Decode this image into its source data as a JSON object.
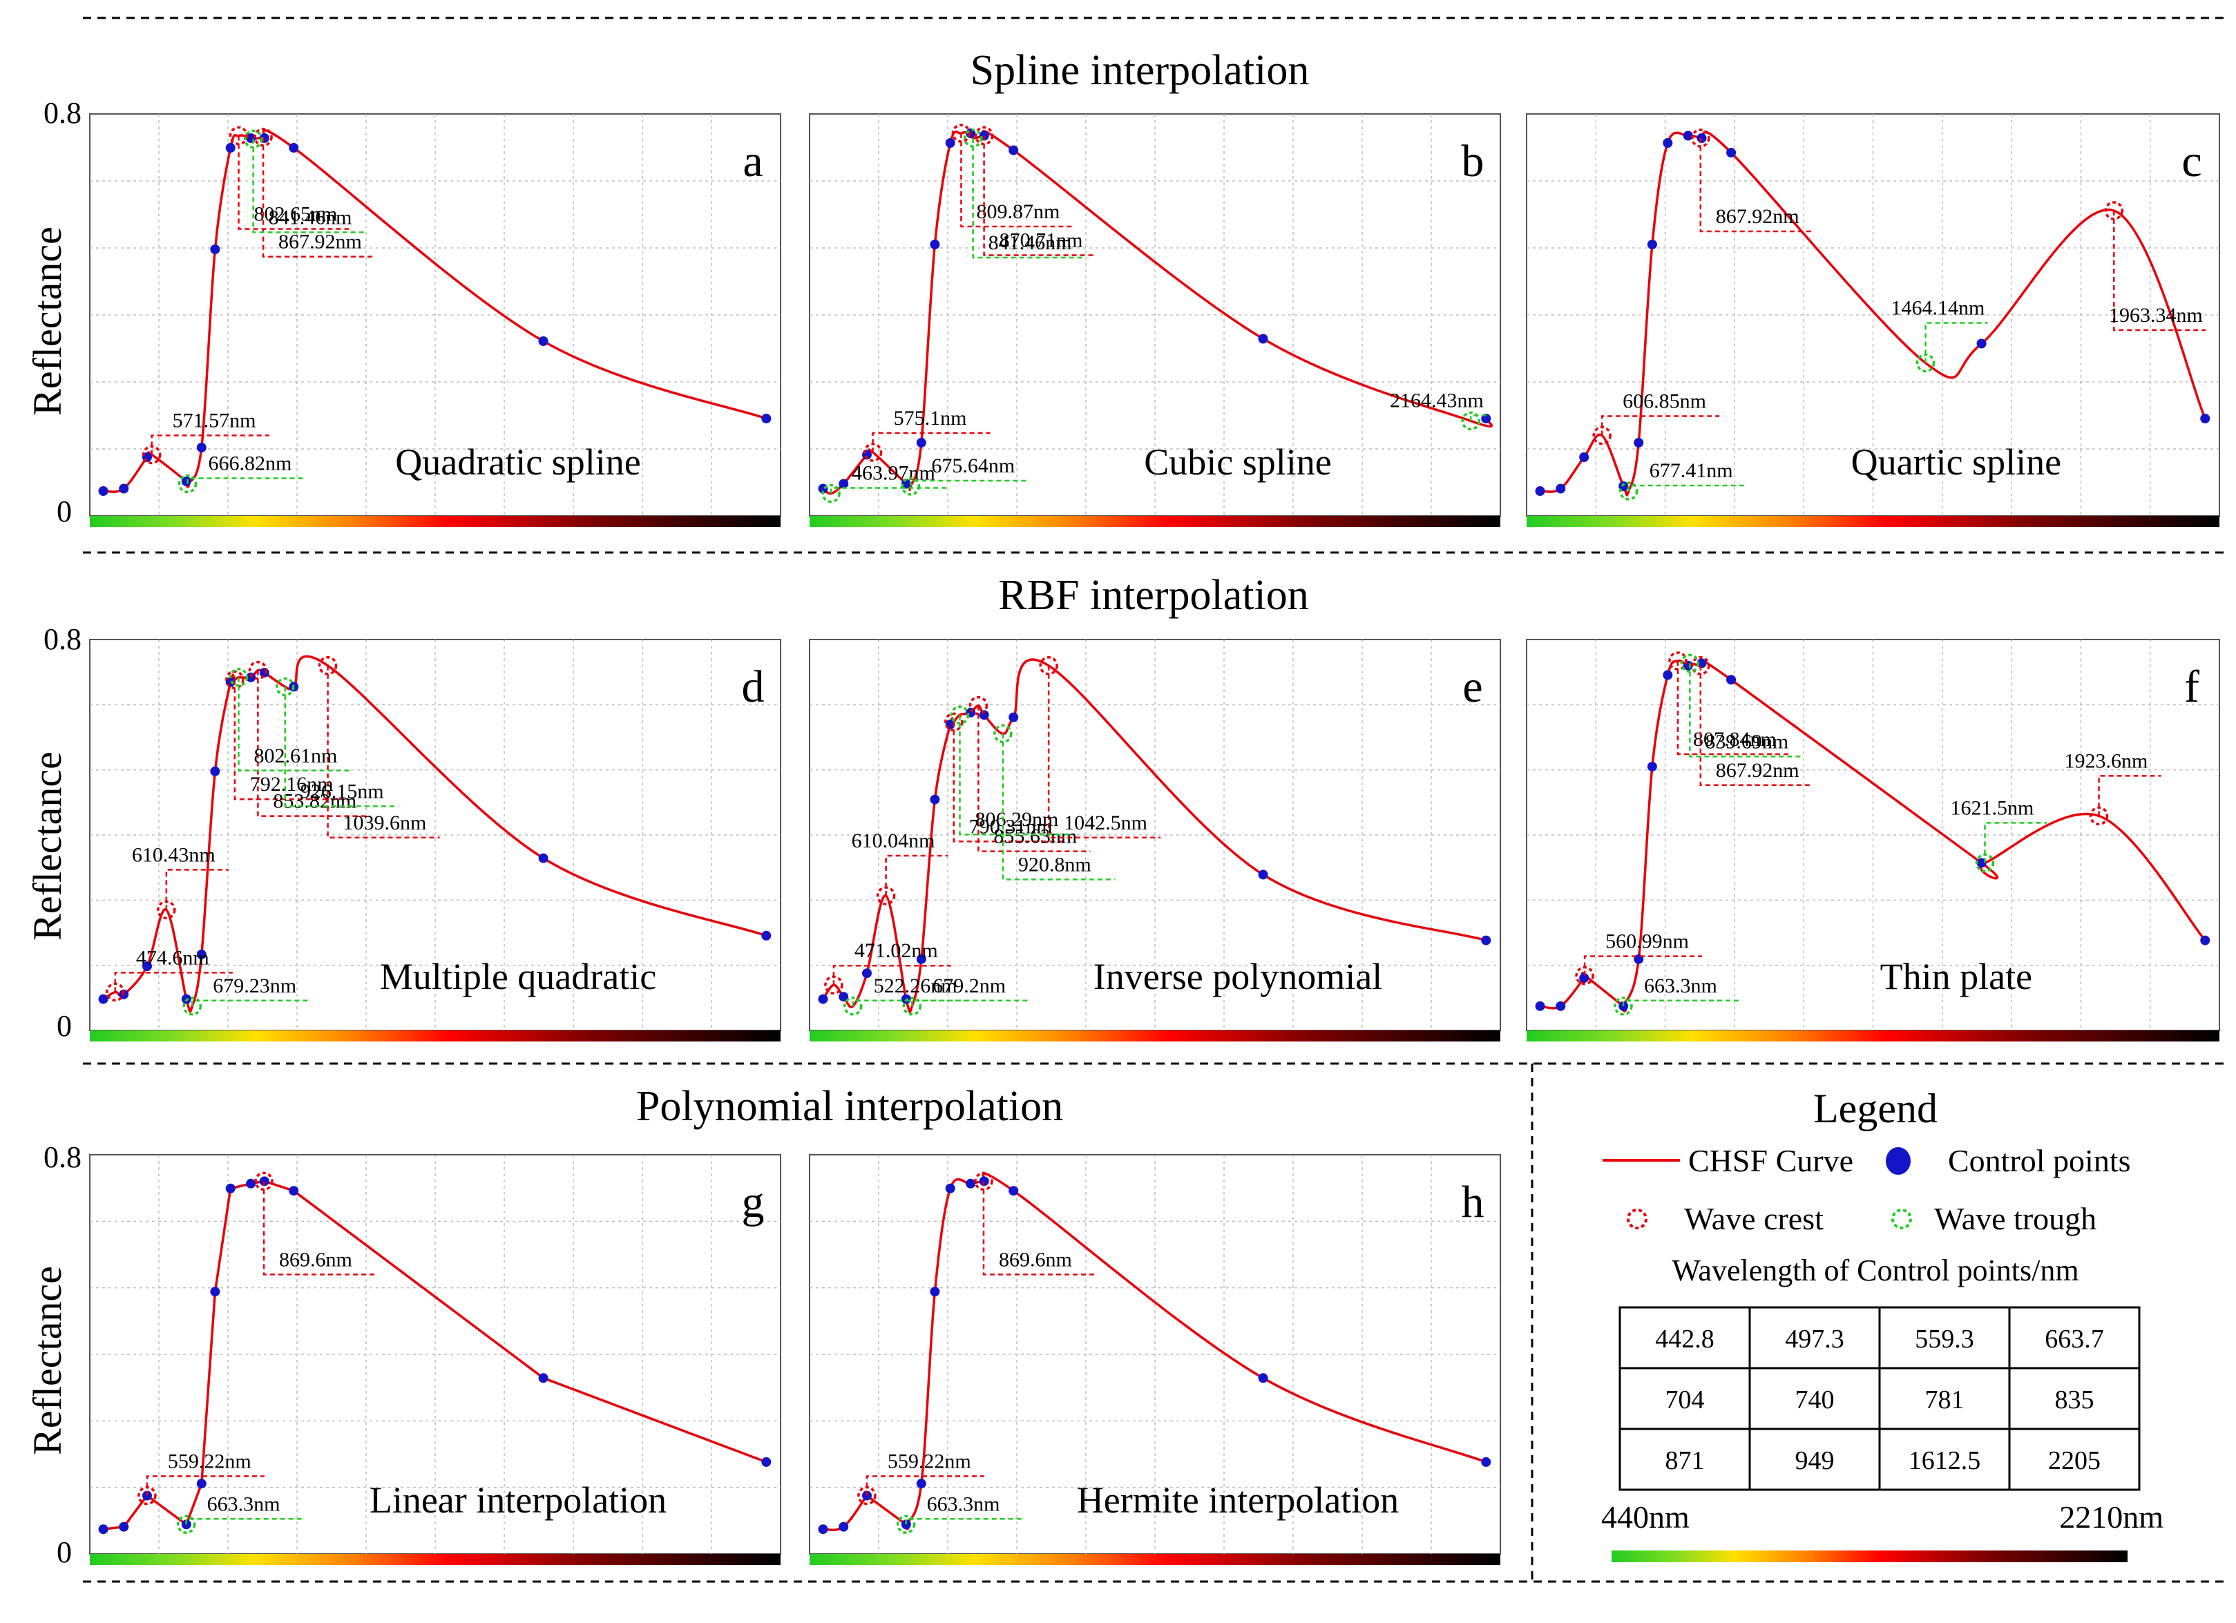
{
  "figure": {
    "sections": [
      "Spline interpolation",
      "RBF interpolation",
      "Polynomial interpolation"
    ],
    "ylabel": "Reflectance",
    "ytick_top": "0.8",
    "ytick_bottom": "0"
  },
  "legend": {
    "title": "Legend",
    "curve_label": "CHSF Curve",
    "control_label": "Control points",
    "crest_label": "Wave crest",
    "trough_label": "Wave trough",
    "table_title": "Wavelength of Control points/nm",
    "table": [
      [
        "442.8",
        "497.3",
        "559.3",
        "663.7"
      ],
      [
        "704",
        "740",
        "781",
        "835"
      ],
      [
        "871",
        "949",
        "1612.5",
        "2205"
      ]
    ],
    "range_start": "440nm",
    "range_end": "2210nm"
  },
  "colors": {
    "curve": "#e8000b",
    "control": "#1414c8",
    "crest": "#e8000b",
    "trough": "#22cc22"
  },
  "chart_data": [
    {
      "type": "line",
      "letter": "a",
      "method": "Quadratic spline",
      "xlim": [
        440,
        2210
      ],
      "ylim": [
        0,
        0.8
      ],
      "control_points": {
        "x": [
          442.8,
          497.3,
          559.3,
          663.7,
          704,
          740,
          781,
          835,
          871,
          949,
          1612.5,
          2205
        ],
        "y": [
          0.04,
          0.045,
          0.11,
          0.06,
          0.13,
          0.54,
          0.75,
          0.77,
          0.77,
          0.75,
          0.35,
          0.19
        ]
      },
      "extra_points": [
        [
          571.57,
          0.115
        ],
        [
          666.82,
          0.055
        ],
        [
          802.65,
          0.775
        ],
        [
          841.46,
          0.768
        ],
        [
          867.92,
          0.772
        ]
      ],
      "crests": [
        {
          "x": 571.57,
          "y": 0.115,
          "label": "571.57nm"
        },
        {
          "x": 802.65,
          "y": 0.775,
          "label": "802.65nm"
        },
        {
          "x": 867.92,
          "y": 0.772,
          "label": "867.92nm"
        }
      ],
      "troughs": [
        {
          "x": 666.82,
          "y": 0.055,
          "label": "666.82nm"
        },
        {
          "x": 841.46,
          "y": 0.768,
          "label": "841.46nm"
        }
      ]
    },
    {
      "type": "line",
      "letter": "b",
      "method": "Cubic spline",
      "xlim": [
        440,
        2210
      ],
      "ylim": [
        0,
        0.8
      ],
      "control_points": {
        "x": [
          442.8,
          497.3,
          559.3,
          663.7,
          704,
          740,
          781,
          835,
          871,
          949,
          1612.5,
          2205
        ],
        "y": [
          0.045,
          0.055,
          0.115,
          0.055,
          0.14,
          0.55,
          0.76,
          0.78,
          0.775,
          0.745,
          0.355,
          0.19
        ]
      },
      "extra_points": [
        [
          463.97,
          0.035
        ],
        [
          575.1,
          0.12
        ],
        [
          675.64,
          0.05
        ],
        [
          809.87,
          0.78
        ],
        [
          841.46,
          0.77
        ],
        [
          870.71,
          0.775
        ],
        [
          2164.43,
          0.185
        ]
      ],
      "crests": [
        {
          "x": 575.1,
          "y": 0.12,
          "label": "575.1nm"
        },
        {
          "x": 809.87,
          "y": 0.78,
          "label": "809.87nm"
        },
        {
          "x": 870.71,
          "y": 0.775,
          "label": "870.71nm"
        }
      ],
      "troughs": [
        {
          "x": 463.97,
          "y": 0.035,
          "label": "463.97nm"
        },
        {
          "x": 675.64,
          "y": 0.05,
          "label": "675.64nm"
        },
        {
          "x": 841.46,
          "y": 0.77,
          "label": "841.46nm"
        },
        {
          "x": 2164.43,
          "y": 0.185,
          "label": "2164.43nm"
        }
      ]
    },
    {
      "type": "line",
      "letter": "c",
      "method": "Quartic spline",
      "xlim": [
        440,
        2210
      ],
      "ylim": [
        0,
        0.8
      ],
      "control_points": {
        "x": [
          442.8,
          497.3,
          559.3,
          663.7,
          704,
          740,
          781,
          835,
          871,
          949,
          1612.5,
          2205
        ],
        "y": [
          0.04,
          0.045,
          0.11,
          0.05,
          0.14,
          0.55,
          0.76,
          0.775,
          0.77,
          0.74,
          0.345,
          0.19
        ]
      },
      "extra_points": [
        [
          606.85,
          0.155
        ],
        [
          677.41,
          0.04
        ],
        [
          867.92,
          0.77
        ],
        [
          1464.14,
          0.305
        ],
        [
          1963.34,
          0.62
        ]
      ],
      "crests": [
        {
          "x": 606.85,
          "y": 0.155,
          "label": "606.85nm"
        },
        {
          "x": 867.92,
          "y": 0.77,
          "label": "867.92nm"
        },
        {
          "x": 1963.34,
          "y": 0.62,
          "label": "1963.34nm"
        }
      ],
      "troughs": [
        {
          "x": 677.41,
          "y": 0.04,
          "label": "677.41nm"
        },
        {
          "x": 1464.14,
          "y": 0.305,
          "label": "1464.14nm"
        }
      ]
    },
    {
      "type": "line",
      "letter": "d",
      "method": "Multiple quadratic",
      "xlim": [
        440,
        2210
      ],
      "ylim": [
        0,
        0.8
      ],
      "control_points": {
        "x": [
          442.8,
          497.3,
          559.3,
          663.7,
          704,
          740,
          781,
          835,
          871,
          949,
          1612.5,
          2205
        ],
        "y": [
          0.055,
          0.065,
          0.125,
          0.055,
          0.15,
          0.54,
          0.73,
          0.74,
          0.75,
          0.72,
          0.355,
          0.19
        ]
      },
      "extra_points": [
        [
          474.6,
          0.07
        ],
        [
          610.43,
          0.245
        ],
        [
          679.23,
          0.04
        ],
        [
          792.16,
          0.735
        ],
        [
          802.61,
          0.74
        ],
        [
          853.82,
          0.755
        ],
        [
          926.15,
          0.72
        ],
        [
          1039.6,
          0.765
        ]
      ],
      "crests": [
        {
          "x": 474.6,
          "y": 0.07,
          "label": "474.6nm"
        },
        {
          "x": 610.43,
          "y": 0.245,
          "label": "610.43nm"
        },
        {
          "x": 792.16,
          "y": 0.735,
          "label": "792.16nm"
        },
        {
          "x": 853.82,
          "y": 0.755,
          "label": "853.82nm"
        },
        {
          "x": 1039.6,
          "y": 0.765,
          "label": "1039.6nm"
        }
      ],
      "troughs": [
        {
          "x": 679.23,
          "y": 0.04,
          "label": "679.23nm"
        },
        {
          "x": 802.61,
          "y": 0.74,
          "label": "802.61nm"
        },
        {
          "x": 926.15,
          "y": 0.72,
          "label": "926.15nm"
        }
      ]
    },
    {
      "type": "line",
      "letter": "e",
      "method": "Inverse polynomial",
      "xlim": [
        440,
        2210
      ],
      "ylim": [
        0,
        0.8
      ],
      "control_points": {
        "x": [
          442.8,
          497.3,
          559.3,
          663.7,
          704,
          740,
          781,
          835,
          871,
          949,
          1612.5,
          2205
        ],
        "y": [
          0.055,
          0.06,
          0.11,
          0.055,
          0.14,
          0.48,
          0.64,
          0.665,
          0.66,
          0.655,
          0.32,
          0.18
        ]
      },
      "extra_points": [
        [
          471.02,
          0.085
        ],
        [
          522.26,
          0.04
        ],
        [
          610.04,
          0.275
        ],
        [
          679.2,
          0.04
        ],
        [
          790.31,
          0.645
        ],
        [
          806.29,
          0.66
        ],
        [
          855.63,
          0.68
        ],
        [
          920.8,
          0.62
        ],
        [
          1042.5,
          0.765
        ]
      ],
      "crests": [
        {
          "x": 471.02,
          "y": 0.085,
          "label": "471.02nm"
        },
        {
          "x": 610.04,
          "y": 0.275,
          "label": "610.04nm"
        },
        {
          "x": 790.31,
          "y": 0.645,
          "label": "790.31nm"
        },
        {
          "x": 855.63,
          "y": 0.68,
          "label": "855.63nm"
        },
        {
          "x": 1042.5,
          "y": 0.765,
          "label": "1042.5nm"
        }
      ],
      "troughs": [
        {
          "x": 522.26,
          "y": 0.04,
          "label": "522.26nm"
        },
        {
          "x": 679.2,
          "y": 0.04,
          "label": "679.2nm"
        },
        {
          "x": 806.29,
          "y": 0.66,
          "label": "806.29nm"
        },
        {
          "x": 920.8,
          "y": 0.62,
          "label": "920.8nm"
        }
      ]
    },
    {
      "type": "line",
      "letter": "f",
      "method": "Thin plate",
      "xlim": [
        440,
        2210
      ],
      "ylim": [
        0,
        0.8
      ],
      "control_points": {
        "x": [
          442.8,
          497.3,
          559.3,
          663.7,
          704,
          740,
          781,
          835,
          871,
          949,
          1612.5,
          2205
        ],
        "y": [
          0.04,
          0.04,
          0.1,
          0.04,
          0.14,
          0.55,
          0.745,
          0.765,
          0.77,
          0.735,
          0.345,
          0.18
        ]
      },
      "extra_points": [
        [
          560.99,
          0.105
        ],
        [
          663.3,
          0.04
        ],
        [
          807.84,
          0.775
        ],
        [
          839.69,
          0.77
        ],
        [
          867.92,
          0.765
        ],
        [
          1621.5,
          0.345
        ],
        [
          1923.6,
          0.445
        ]
      ],
      "crests": [
        {
          "x": 560.99,
          "y": 0.105,
          "label": "560.99nm"
        },
        {
          "x": 807.84,
          "y": 0.775,
          "label": "807.84nm"
        },
        {
          "x": 867.92,
          "y": 0.765,
          "label": "867.92nm"
        },
        {
          "x": 1923.6,
          "y": 0.445,
          "label": "1923.6nm"
        }
      ],
      "troughs": [
        {
          "x": 663.3,
          "y": 0.04,
          "label": "663.3nm"
        },
        {
          "x": 839.69,
          "y": 0.77,
          "label": "839.69nm"
        },
        {
          "x": 1621.5,
          "y": 0.345,
          "label": "1621.5nm"
        }
      ]
    },
    {
      "type": "line",
      "letter": "g",
      "method": "Linear interpolation",
      "xlim": [
        440,
        2210
      ],
      "ylim": [
        0,
        0.8
      ],
      "control_points": {
        "x": [
          442.8,
          497.3,
          559.3,
          663.7,
          704,
          740,
          781,
          835,
          871,
          949,
          1612.5,
          2205
        ],
        "y": [
          0.04,
          0.045,
          0.11,
          0.05,
          0.135,
          0.535,
          0.75,
          0.76,
          0.765,
          0.745,
          0.355,
          0.18
        ]
      },
      "extra_points": [
        [
          559.22,
          0.11
        ],
        [
          663.3,
          0.05
        ],
        [
          869.6,
          0.765
        ]
      ],
      "crests": [
        {
          "x": 559.22,
          "y": 0.11,
          "label": "559.22nm"
        },
        {
          "x": 869.6,
          "y": 0.765,
          "label": "869.6nm"
        }
      ],
      "troughs": [
        {
          "x": 663.3,
          "y": 0.05,
          "label": "663.3nm"
        }
      ]
    },
    {
      "type": "line",
      "letter": "h",
      "method": "Hermite interpolation",
      "xlim": [
        440,
        2210
      ],
      "ylim": [
        0,
        0.8
      ],
      "control_points": {
        "x": [
          442.8,
          497.3,
          559.3,
          663.7,
          704,
          740,
          781,
          835,
          871,
          949,
          1612.5,
          2205
        ],
        "y": [
          0.04,
          0.045,
          0.11,
          0.05,
          0.135,
          0.535,
          0.75,
          0.76,
          0.765,
          0.745,
          0.355,
          0.18
        ]
      },
      "extra_points": [
        [
          559.22,
          0.11
        ],
        [
          663.3,
          0.05
        ],
        [
          869.6,
          0.765
        ]
      ],
      "crests": [
        {
          "x": 559.22,
          "y": 0.11,
          "label": "559.22nm"
        },
        {
          "x": 869.6,
          "y": 0.765,
          "label": "869.6nm"
        }
      ],
      "troughs": [
        {
          "x": 663.3,
          "y": 0.05,
          "label": "663.3nm"
        }
      ]
    }
  ]
}
